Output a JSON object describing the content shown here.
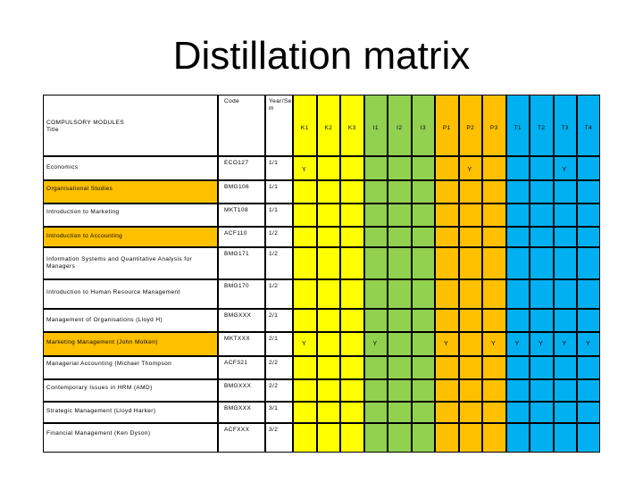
{
  "slide": {
    "title": "Distillation matrix"
  },
  "colors": {
    "k_columns": "#ffff00",
    "i_columns": "#92d050",
    "p_columns": "#ffc000",
    "t_columns": "#00b0f0",
    "highlight_row": "#ffc000"
  },
  "header": {
    "module_title_label": "COMPULSORY MODULES\nTitle",
    "code_label": "Code",
    "year_sem_label": "Year/Se\nm",
    "outcomes": [
      {
        "label": "K1",
        "group": "K"
      },
      {
        "label": "K2",
        "group": "K"
      },
      {
        "label": "K3",
        "group": "K"
      },
      {
        "label": "I1",
        "group": "I"
      },
      {
        "label": "I2",
        "group": "I"
      },
      {
        "label": "I3",
        "group": "I"
      },
      {
        "label": "P1",
        "group": "P"
      },
      {
        "label": "P2",
        "group": "P"
      },
      {
        "label": "P3",
        "group": "P"
      },
      {
        "label": "T1",
        "group": "T"
      },
      {
        "label": "T2",
        "group": "T"
      },
      {
        "label": "T3",
        "group": "T"
      },
      {
        "label": "T4",
        "group": "T"
      }
    ]
  },
  "rows": [
    {
      "module": "Economics",
      "code": "ECO127",
      "year_sem": "1/1",
      "highlight": false,
      "marks": [
        "Y",
        "",
        "",
        "",
        "",
        "",
        "",
        "Y",
        "",
        "",
        "",
        "Y",
        ""
      ]
    },
    {
      "module": "Organisational Studies",
      "code": "BMG106",
      "year_sem": "1/1",
      "highlight": true,
      "marks": [
        "",
        "",
        "",
        "",
        "",
        "",
        "",
        "",
        "",
        "",
        "",
        "",
        ""
      ]
    },
    {
      "module": "Introduction to Marketing",
      "code": "MKT108",
      "year_sem": "1/1",
      "highlight": false,
      "marks": [
        "",
        "",
        "",
        "",
        "",
        "",
        "",
        "",
        "",
        "",
        "",
        "",
        ""
      ]
    },
    {
      "module": "Introduction to Accounting",
      "code": "ACF110",
      "year_sem": "1/2",
      "highlight": true,
      "marks": [
        "",
        "",
        "",
        "",
        "",
        "",
        "",
        "",
        "",
        "",
        "",
        "",
        ""
      ]
    },
    {
      "module": "Information Systems and Quantitative Analysis for Managers",
      "code": "BMG171",
      "year_sem": "1/2",
      "highlight": false,
      "marks": [
        "",
        "",
        "",
        "",
        "",
        "",
        "",
        "",
        "",
        "",
        "",
        "",
        ""
      ]
    },
    {
      "module": "Introduction to Human Resource Management",
      "code": "BMG170",
      "year_sem": "1/2",
      "highlight": false,
      "marks": [
        "",
        "",
        "",
        "",
        "",
        "",
        "",
        "",
        "",
        "",
        "",
        "",
        ""
      ]
    },
    {
      "module": "Management of Organisations (Lloyd H)",
      "code": "BMGXXX",
      "year_sem": "2/1",
      "highlight": false,
      "marks": [
        "",
        "",
        "",
        "",
        "",
        "",
        "",
        "",
        "",
        "",
        "",
        "",
        ""
      ]
    },
    {
      "module": "Marketing Management (John Molken)",
      "code": "MKTXXX",
      "year_sem": "2/1",
      "highlight": true,
      "marks": [
        "Y",
        "",
        "",
        "Y",
        "",
        "",
        "Y",
        "",
        "Y",
        "Y",
        "Y",
        "Y",
        "Y"
      ]
    },
    {
      "module": "Managerial Accounting (Michael Thompson",
      "code": "ACF321",
      "year_sem": "2/2",
      "highlight": false,
      "marks": [
        "",
        "",
        "",
        "",
        "",
        "",
        "",
        "",
        "",
        "",
        "",
        "",
        ""
      ]
    },
    {
      "module": "Contemporary Issues in HRM (AMD)",
      "code": "BMGXXX",
      "year_sem": "2/2",
      "highlight": false,
      "marks": [
        "",
        "",
        "",
        "",
        "",
        "",
        "",
        "",
        "",
        "",
        "",
        "",
        ""
      ]
    },
    {
      "module": "Strategic Management (Lloyd Harker)",
      "code": "BMGXXX",
      "year_sem": "3/1",
      "highlight": false,
      "marks": [
        "",
        "",
        "",
        "",
        "",
        "",
        "",
        "",
        "",
        "",
        "",
        "",
        ""
      ]
    },
    {
      "module": "Financial Management (Ken Dyson)",
      "code": "ACFXXX",
      "year_sem": "3/2",
      "highlight": false,
      "marks": [
        "",
        "",
        "",
        "",
        "",
        "",
        "",
        "",
        "",
        "",
        "",
        "",
        ""
      ]
    }
  ]
}
